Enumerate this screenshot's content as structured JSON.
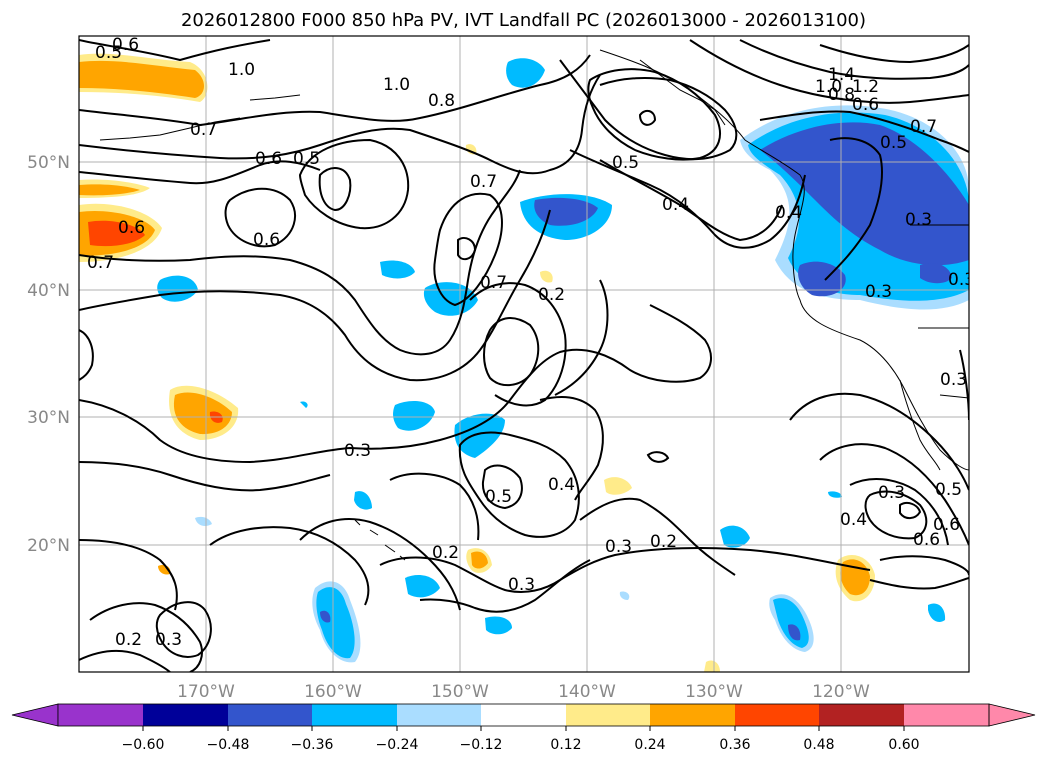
{
  "title": "2026012800 F000 850 hPa PV, IVT Landfall PC (2026013000 - 2026013100)",
  "map": {
    "lon_ticks": [
      "170°W",
      "160°W",
      "150°W",
      "140°W",
      "130°W",
      "120°W"
    ],
    "lat_ticks": [
      "50°N",
      "40°N",
      "30°N",
      "20°N"
    ],
    "grid": true
  },
  "contour_labels": [
    "0.5",
    "0.6",
    "1.0",
    "1.0",
    "0.8",
    "0.7",
    "0.6",
    "0.5",
    "0.6",
    "0.6",
    "0.7",
    "0.7",
    "0.7",
    "0.2",
    "0.5",
    "0.4",
    "1.4",
    "1.2",
    "1.0",
    "0.8",
    "0.6",
    "0.5",
    "0.7",
    "0.4",
    "0.3",
    "0.3",
    "0.3",
    "0.3",
    "0.5",
    "0.4",
    "0.2",
    "0.3",
    "0.2",
    "0.3",
    "0.2",
    "0.3",
    "0.4",
    "0.3",
    "0.6",
    "0.6",
    "0.5",
    "0.3"
  ],
  "colorbar": {
    "ticks": [
      "−0.60",
      "−0.48",
      "−0.36",
      "−0.24",
      "−0.12",
      "0.12",
      "0.24",
      "0.36",
      "0.48",
      "0.60"
    ],
    "colors": [
      "#9933cc",
      "#000099",
      "#3355cc",
      "#00bbff",
      "#aaddff",
      "#ffffff",
      "#ffeb8a",
      "#ffa500",
      "#ff4500",
      "#b22222",
      "#ff88aa"
    ]
  }
}
